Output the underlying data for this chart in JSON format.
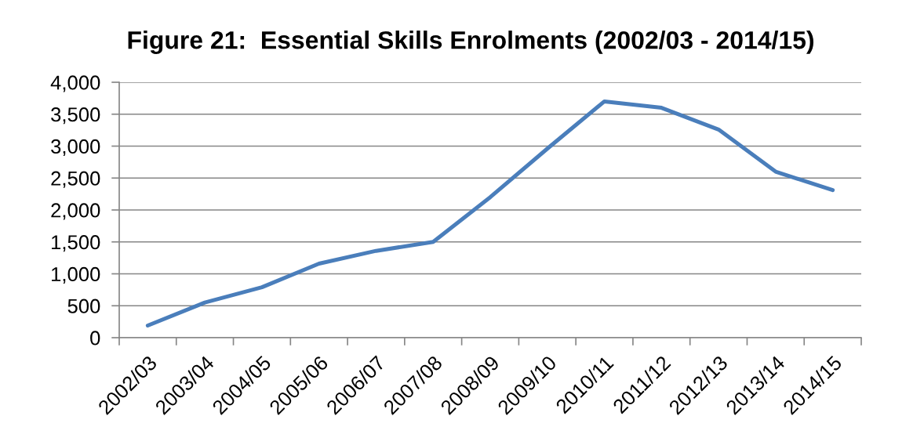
{
  "chart_data": {
    "type": "line",
    "title": "Figure 21:  Essential Skills Enrolments (2002/03 - 2014/15)",
    "categories": [
      "2002/03",
      "2003/04",
      "2004/05",
      "2005/06",
      "2006/07",
      "2007/08",
      "2008/09",
      "2009/10",
      "2010/11",
      "2011/12",
      "2012/13",
      "2013/14",
      "2014/15"
    ],
    "series": [
      {
        "color": "#4a7ebb",
        "values": [
          190,
          550,
          790,
          1160,
          1360,
          1500,
          2200,
          2960,
          3700,
          3600,
          3260,
          2600,
          2310
        ]
      }
    ],
    "ylim": [
      0,
      4000
    ],
    "yticks": [
      {
        "value": 0,
        "label": "0"
      },
      {
        "value": 500,
        "label": "500"
      },
      {
        "value": 1000,
        "label": "1,000"
      },
      {
        "value": 1500,
        "label": "1,500"
      },
      {
        "value": 2000,
        "label": "2,000"
      },
      {
        "value": 2500,
        "label": "2,500"
      },
      {
        "value": 3000,
        "label": "3,000"
      },
      {
        "value": 3500,
        "label": "3,500"
      },
      {
        "value": 4000,
        "label": "4,000"
      }
    ],
    "grid": "y",
    "marker": "none",
    "line_style": "solid"
  }
}
